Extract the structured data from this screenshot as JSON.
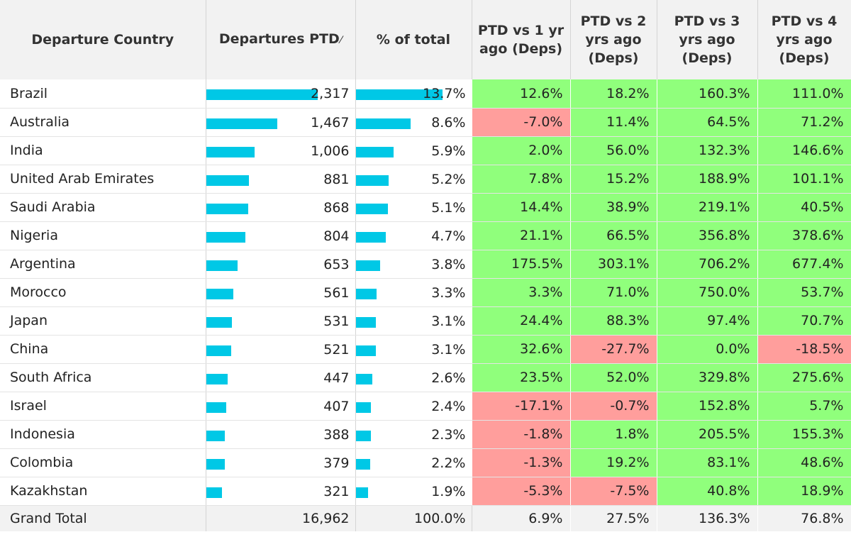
{
  "headers": {
    "country": "Departure Country",
    "departures": "Departures PTD",
    "departures_sort_indicator": "⁄",
    "pct_total": "% of total",
    "vs1": "PTD vs 1 yr ago (Deps)",
    "vs2": "PTD vs 2 yrs ago (Deps)",
    "vs3": "PTD vs 3 yrs ago (Deps)",
    "vs4": "PTD vs 4 yrs ago (Deps)"
  },
  "colors": {
    "bar": "#00c8e6",
    "positive": "#90ff7c",
    "negative": "#ff9e9c",
    "header_bg": "#f2f2f2"
  },
  "bar_max_departures": 2317,
  "rows": [
    {
      "country": "Brazil",
      "departures": "2,317",
      "departures_value": 2317,
      "pct": "13.7%",
      "pct_value": 13.7,
      "vs1": "12.6%",
      "vs2": "18.2%",
      "vs3": "160.3%",
      "vs4": "111.0%"
    },
    {
      "country": "Australia",
      "departures": "1,467",
      "departures_value": 1467,
      "pct": "8.6%",
      "pct_value": 8.6,
      "vs1": "-7.0%",
      "vs2": "11.4%",
      "vs3": "64.5%",
      "vs4": "71.2%"
    },
    {
      "country": "India",
      "departures": "1,006",
      "departures_value": 1006,
      "pct": "5.9%",
      "pct_value": 5.9,
      "vs1": "2.0%",
      "vs2": "56.0%",
      "vs3": "132.3%",
      "vs4": "146.6%"
    },
    {
      "country": "United Arab Emirates",
      "departures": "881",
      "departures_value": 881,
      "pct": "5.2%",
      "pct_value": 5.2,
      "vs1": "7.8%",
      "vs2": "15.2%",
      "vs3": "188.9%",
      "vs4": "101.1%"
    },
    {
      "country": "Saudi Arabia",
      "departures": "868",
      "departures_value": 868,
      "pct": "5.1%",
      "pct_value": 5.1,
      "vs1": "14.4%",
      "vs2": "38.9%",
      "vs3": "219.1%",
      "vs4": "40.5%"
    },
    {
      "country": "Nigeria",
      "departures": "804",
      "departures_value": 804,
      "pct": "4.7%",
      "pct_value": 4.7,
      "vs1": "21.1%",
      "vs2": "66.5%",
      "vs3": "356.8%",
      "vs4": "378.6%"
    },
    {
      "country": "Argentina",
      "departures": "653",
      "departures_value": 653,
      "pct": "3.8%",
      "pct_value": 3.8,
      "vs1": "175.5%",
      "vs2": "303.1%",
      "vs3": "706.2%",
      "vs4": "677.4%"
    },
    {
      "country": "Morocco",
      "departures": "561",
      "departures_value": 561,
      "pct": "3.3%",
      "pct_value": 3.3,
      "vs1": "3.3%",
      "vs2": "71.0%",
      "vs3": "750.0%",
      "vs4": "53.7%"
    },
    {
      "country": "Japan",
      "departures": "531",
      "departures_value": 531,
      "pct": "3.1%",
      "pct_value": 3.1,
      "vs1": "24.4%",
      "vs2": "88.3%",
      "vs3": "97.4%",
      "vs4": "70.7%"
    },
    {
      "country": "China",
      "departures": "521",
      "departures_value": 521,
      "pct": "3.1%",
      "pct_value": 3.1,
      "vs1": "32.6%",
      "vs2": "-27.7%",
      "vs3": "0.0%",
      "vs4": "-18.5%"
    },
    {
      "country": "South Africa",
      "departures": "447",
      "departures_value": 447,
      "pct": "2.6%",
      "pct_value": 2.6,
      "vs1": "23.5%",
      "vs2": "52.0%",
      "vs3": "329.8%",
      "vs4": "275.6%"
    },
    {
      "country": "Israel",
      "departures": "407",
      "departures_value": 407,
      "pct": "2.4%",
      "pct_value": 2.4,
      "vs1": "-17.1%",
      "vs2": "-0.7%",
      "vs3": "152.8%",
      "vs4": "5.7%"
    },
    {
      "country": "Indonesia",
      "departures": "388",
      "departures_value": 388,
      "pct": "2.3%",
      "pct_value": 2.3,
      "vs1": "-1.8%",
      "vs2": "1.8%",
      "vs3": "205.5%",
      "vs4": "155.3%"
    },
    {
      "country": "Colombia",
      "departures": "379",
      "departures_value": 379,
      "pct": "2.2%",
      "pct_value": 2.2,
      "vs1": "-1.3%",
      "vs2": "19.2%",
      "vs3": "83.1%",
      "vs4": "48.6%"
    },
    {
      "country": "Kazakhstan",
      "departures": "321",
      "departures_value": 321,
      "pct": "1.9%",
      "pct_value": 1.9,
      "vs1": "-5.3%",
      "vs2": "-7.5%",
      "vs3": "40.8%",
      "vs4": "18.9%"
    }
  ],
  "total": {
    "country": "Grand Total",
    "departures": "16,962",
    "pct": "100.0%",
    "vs1": "6.9%",
    "vs2": "27.5%",
    "vs3": "136.3%",
    "vs4": "76.8%"
  }
}
